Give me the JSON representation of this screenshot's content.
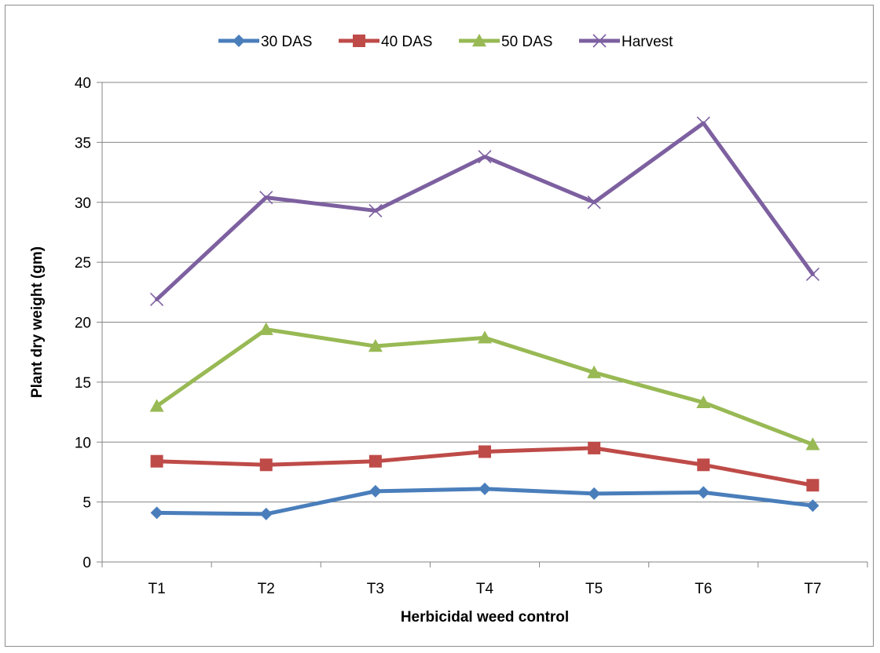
{
  "chart_data": {
    "type": "line",
    "title": "",
    "xlabel": "Herbicidal weed control",
    "ylabel": "Plant dry weight (gm)",
    "categories": [
      "T1",
      "T2",
      "T3",
      "T4",
      "T5",
      "T6",
      "T7"
    ],
    "ylim": [
      0,
      40
    ],
    "yticks": [
      0,
      5,
      10,
      15,
      20,
      25,
      30,
      35,
      40
    ],
    "grid": "horizontal",
    "legend_position": "top",
    "series": [
      {
        "name": "30 DAS",
        "color": "#4a7ebb",
        "marker": "diamond",
        "values": [
          4.1,
          4.0,
          5.9,
          6.1,
          5.7,
          5.8,
          4.7
        ]
      },
      {
        "name": "40 DAS",
        "color": "#be4b48",
        "marker": "square",
        "values": [
          8.4,
          8.1,
          8.4,
          9.2,
          9.5,
          8.1,
          6.4
        ]
      },
      {
        "name": "50 DAS",
        "color": "#98b954",
        "marker": "triangle",
        "values": [
          13.0,
          19.4,
          18.0,
          18.7,
          15.8,
          13.3,
          9.8
        ]
      },
      {
        "name": "Harvest",
        "color": "#7d60a0",
        "marker": "x",
        "values": [
          21.9,
          30.4,
          29.3,
          33.8,
          30.0,
          36.6,
          24.0
        ]
      }
    ]
  }
}
